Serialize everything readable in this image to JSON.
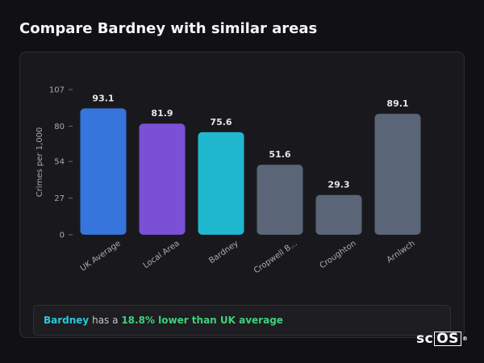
{
  "title": "Compare Bardney with similar areas",
  "chart_data": {
    "type": "bar",
    "ylabel": "Crimes per 1,000",
    "xlabel": "",
    "ylim": [
      0,
      107
    ],
    "yticks": [
      0,
      27,
      54,
      80,
      107
    ],
    "categories": [
      "UK Average",
      "Local Area",
      "Bardney",
      "Cropwell B...",
      "Croughton",
      "Arnlwch"
    ],
    "values": [
      93.1,
      81.9,
      75.6,
      51.6,
      29.3,
      89.1
    ],
    "value_labels": [
      "93.1",
      "81.9",
      "75.6",
      "51.6",
      "29.3",
      "89.1"
    ],
    "colors": [
      "#3575dc",
      "#7b4fd6",
      "#1fb8cf",
      "#5a6578",
      "#5a6578",
      "#5a6578"
    ],
    "grid": false,
    "legend": "none"
  },
  "summary": {
    "area": "Bardney",
    "middle": "has a",
    "difference": "18.8% lower than UK average",
    "colors": {
      "area": "#2fc7d8",
      "difference": "#3fd17a"
    }
  },
  "logo": {
    "prefix": "sc",
    "boxed": "OS",
    "mark": "®"
  }
}
